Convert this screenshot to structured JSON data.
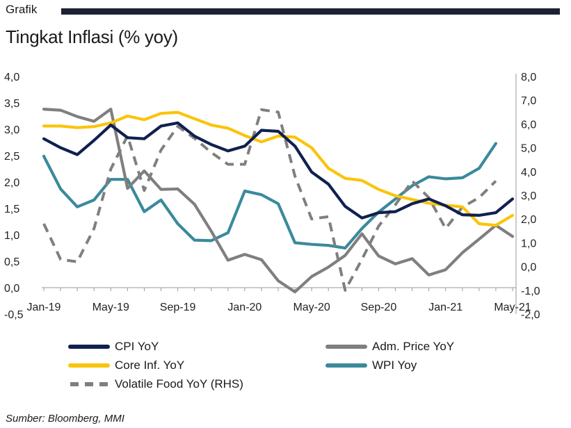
{
  "header": {
    "label": "Grafik"
  },
  "title": "Tingkat Inflasi (% yoy)",
  "source": "Sumber: Bloomberg, MMI",
  "chart_data": {
    "type": "line",
    "x": [
      "Jan-19",
      "Feb-19",
      "Mar-19",
      "Apr-19",
      "May-19",
      "Jun-19",
      "Jul-19",
      "Aug-19",
      "Sep-19",
      "Oct-19",
      "Nov-19",
      "Dec-19",
      "Jan-20",
      "Feb-20",
      "Mar-20",
      "Apr-20",
      "May-20",
      "Jun-20",
      "Jul-20",
      "Aug-20",
      "Sep-20",
      "Oct-20",
      "Nov-20",
      "Dec-20",
      "Jan-21",
      "Feb-21",
      "Mar-21",
      "Apr-21",
      "May-21"
    ],
    "x_tick_labels": [
      "Jan-19",
      "May-19",
      "Sep-19",
      "Jan-20",
      "May-20",
      "Sep-20",
      "Jan-21",
      "May-21"
    ],
    "y_left": {
      "ylim": [
        -0.5,
        4.0
      ],
      "ticks": [
        "-0,5",
        "0,0",
        "0,5",
        "1,0",
        "1,5",
        "2,0",
        "2,5",
        "3,0",
        "3,5",
        "4,0"
      ]
    },
    "y_right": {
      "ylim": [
        -2.0,
        8.0
      ],
      "ticks": [
        "-2,0",
        "-1,0",
        "0,0",
        "1,0",
        "2,0",
        "3,0",
        "4,0",
        "5,0",
        "6,0",
        "7,0",
        "8,0"
      ]
    },
    "grid": false,
    "legend_position": "bottom",
    "series": [
      {
        "name": "CPI YoY",
        "axis": "left",
        "color": "#10204f",
        "style": "solid",
        "values": [
          2.82,
          2.65,
          2.52,
          2.79,
          3.08,
          2.84,
          2.82,
          3.06,
          3.12,
          2.87,
          2.71,
          2.59,
          2.68,
          2.98,
          2.96,
          2.68,
          2.19,
          1.96,
          1.54,
          1.32,
          1.42,
          1.44,
          1.59,
          1.68,
          1.55,
          1.38,
          1.37,
          1.42,
          1.68
        ]
      },
      {
        "name": "Adm. Price YoY",
        "axis": "left",
        "color": "#7f7f7f",
        "style": "solid",
        "values": [
          3.38,
          3.36,
          3.24,
          3.15,
          3.38,
          1.88,
          2.21,
          1.86,
          1.87,
          1.58,
          1.07,
          0.52,
          0.63,
          0.53,
          0.13,
          -0.08,
          0.21,
          0.39,
          0.61,
          1.02,
          0.6,
          0.45,
          0.55,
          0.24,
          0.34,
          0.66,
          0.92,
          1.18,
          0.97
        ]
      },
      {
        "name": "Core Inf. YoY",
        "axis": "left",
        "color": "#fac40a",
        "style": "solid",
        "values": [
          3.06,
          3.06,
          3.03,
          3.05,
          3.12,
          3.25,
          3.18,
          3.3,
          3.32,
          3.2,
          3.08,
          3.02,
          2.88,
          2.76,
          2.87,
          2.85,
          2.65,
          2.26,
          2.07,
          2.03,
          1.86,
          1.74,
          1.67,
          1.6,
          1.56,
          1.53,
          1.21,
          1.18,
          1.37
        ]
      },
      {
        "name": "WPI Yoy",
        "axis": "left",
        "color": "#3a8a9c",
        "style": "solid",
        "values": [
          2.49,
          1.87,
          1.53,
          1.66,
          2.05,
          2.05,
          1.44,
          1.66,
          1.21,
          0.9,
          0.89,
          1.04,
          1.83,
          1.76,
          1.59,
          0.85,
          0.82,
          0.8,
          0.75,
          1.12,
          1.43,
          1.68,
          1.93,
          2.1,
          2.06,
          2.08,
          2.26,
          2.73,
          null
        ]
      },
      {
        "name": "Volatile Food YoY (RHS)",
        "axis": "right",
        "color": "#7f7f7f",
        "style": "dashed",
        "values": [
          1.8,
          0.3,
          0.2,
          1.6,
          4.1,
          5.5,
          3.2,
          4.9,
          5.9,
          5.4,
          4.8,
          4.3,
          4.3,
          6.6,
          6.5,
          3.8,
          2.0,
          2.1,
          -1.0,
          0.3,
          1.7,
          2.6,
          3.6,
          2.9,
          1.6,
          2.5,
          2.9,
          3.6,
          null
        ]
      }
    ]
  },
  "legend": [
    {
      "label": "CPI YoY",
      "color": "#10204f",
      "dashed": false
    },
    {
      "label": "Adm. Price YoY",
      "color": "#7f7f7f",
      "dashed": false
    },
    {
      "label": "Core Inf. YoY",
      "color": "#fac40a",
      "dashed": false
    },
    {
      "label": "WPI Yoy",
      "color": "#3a8a9c",
      "dashed": false
    },
    {
      "label": "Volatile Food YoY (RHS)",
      "color": "#7f7f7f",
      "dashed": true
    }
  ]
}
